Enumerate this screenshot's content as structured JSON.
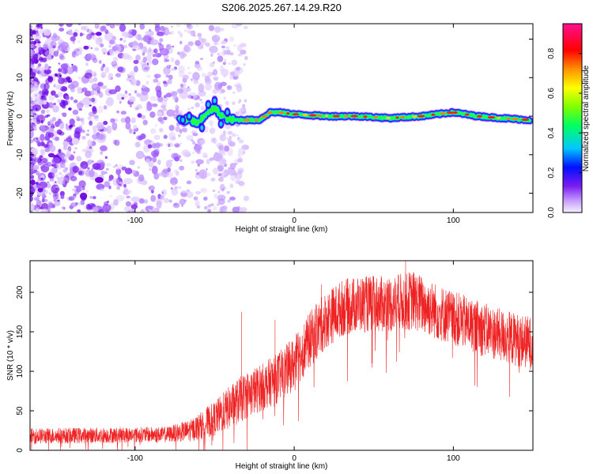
{
  "title": "S206.2025.267.14.29.R20",
  "colors": {
    "snr_line": "#ee2222",
    "axis": "#000000"
  },
  "chart_data": [
    {
      "type": "heatmap",
      "xlabel": "Height of straight line (km)",
      "ylabel": "Frequency (Hz)",
      "xlim": [
        -166,
        150
      ],
      "ylim": [
        -25,
        24
      ],
      "xticks": [
        -100,
        0,
        100
      ],
      "yticks": [
        -20,
        -10,
        0,
        10,
        20
      ],
      "colorbar": {
        "label": "Normalized spectral amplitude",
        "range": [
          0.0,
          0.95
        ],
        "ticks": [
          0.0,
          0.2,
          0.4,
          0.6,
          0.8
        ],
        "colormap": "rainbow"
      },
      "ridge": {
        "description_values": "dominant frequency track",
        "points": [
          [
            -72,
            -1
          ],
          [
            -65,
            -1
          ],
          [
            -60,
            -2
          ],
          [
            -55,
            1
          ],
          [
            -50,
            2
          ],
          [
            -45,
            0
          ],
          [
            -40,
            -1
          ],
          [
            -30,
            -1
          ],
          [
            -22,
            -1
          ],
          [
            -15,
            1
          ],
          [
            -10,
            1
          ],
          [
            0,
            0.5
          ],
          [
            20,
            0
          ],
          [
            40,
            0
          ],
          [
            60,
            -0.5
          ],
          [
            80,
            0
          ],
          [
            100,
            1
          ],
          [
            115,
            0
          ],
          [
            130,
            -0.5
          ],
          [
            148,
            -1
          ]
        ]
      },
      "noise_region": [
        -166,
        -40
      ]
    },
    {
      "type": "line",
      "xlabel": "Height of straight line (km)",
      "ylabel": "SNR (10 * v/v)",
      "xlim": [
        -166,
        150
      ],
      "ylim": [
        0,
        240
      ],
      "xticks": [
        -100,
        0,
        100
      ],
      "yticks": [
        0,
        50,
        100,
        150,
        200
      ],
      "envelope": {
        "x": [
          -166,
          -120,
          -80,
          -65,
          -50,
          -40,
          -30,
          -20,
          -10,
          0,
          10,
          20,
          30,
          40,
          60,
          75,
          90,
          110,
          130,
          150
        ],
        "mean": [
          18,
          19,
          20,
          25,
          40,
          55,
          70,
          80,
          92,
          110,
          140,
          165,
          180,
          185,
          185,
          190,
          175,
          160,
          145,
          135
        ],
        "spread": [
          10,
          10,
          10,
          14,
          22,
          28,
          30,
          30,
          32,
          34,
          36,
          36,
          36,
          36,
          36,
          38,
          36,
          34,
          34,
          34
        ]
      },
      "spikes": [
        [
          -33,
          175
        ],
        [
          -12,
          165
        ],
        [
          -4,
          100
        ],
        [
          17,
          210
        ],
        [
          70,
          240
        ]
      ]
    }
  ]
}
